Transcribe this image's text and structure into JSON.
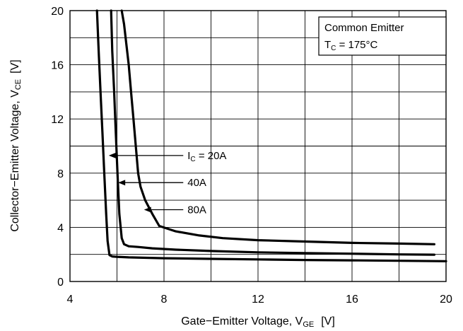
{
  "chart_data": {
    "type": "line",
    "xlabel": {
      "main": "Gate−Emitter Voltage, V",
      "sub": "GE",
      "unit": "[V]"
    },
    "ylabel": {
      "main": "Collector−Emitter Voltage, V",
      "sub": "CE",
      "unit": "[V]"
    },
    "xlim": [
      4,
      20
    ],
    "ylim": [
      0,
      20
    ],
    "x_ticks": [
      4,
      8,
      12,
      16,
      20
    ],
    "y_ticks": [
      0,
      4,
      8,
      12,
      16,
      20
    ],
    "x_grid_step": 2,
    "y_grid_step": 2,
    "grid": true,
    "legend_box": {
      "line1": "Common Emitter",
      "line2_main": "T",
      "line2_sub": "C",
      "line2_rest": " = 175°C",
      "placement": "top-right"
    },
    "series": [
      {
        "name": "20A",
        "label_main": "I",
        "label_sub": "C",
        "label_rest": " = 20A",
        "arrow_at": [
          5.65,
          9.3
        ],
        "label_at": [
          9.0,
          9.3
        ],
        "x": [
          5.15,
          5.22,
          5.3,
          5.38,
          5.46,
          5.54,
          5.6,
          5.68,
          5.8,
          6.0,
          6.5,
          8,
          10,
          12,
          14,
          16,
          18,
          20
        ],
        "y": [
          20,
          17,
          14,
          11,
          8,
          5,
          3,
          1.95,
          1.85,
          1.82,
          1.78,
          1.72,
          1.67,
          1.63,
          1.59,
          1.56,
          1.53,
          1.5
        ]
      },
      {
        "name": "40A",
        "label_main": "",
        "label_sub": "",
        "label_rest": "40A",
        "arrow_at": [
          6.05,
          7.3
        ],
        "label_at": [
          9.0,
          7.3
        ],
        "x": [
          5.75,
          5.8,
          5.88,
          5.95,
          6.02,
          6.1,
          6.2,
          6.3,
          6.5,
          6.9,
          7.5,
          8.5,
          10,
          12,
          14,
          16,
          18,
          19.5
        ],
        "y": [
          20,
          17,
          14,
          11,
          8,
          5,
          3.2,
          2.75,
          2.6,
          2.55,
          2.45,
          2.35,
          2.25,
          2.15,
          2.1,
          2.05,
          2.0,
          1.98
        ]
      },
      {
        "name": "80A",
        "label_main": "",
        "label_sub": "",
        "label_rest": "80A",
        "arrow_at": [
          7.15,
          5.3
        ],
        "label_at": [
          9.0,
          5.3
        ],
        "x": [
          6.2,
          6.3,
          6.4,
          6.5,
          6.6,
          6.7,
          6.8,
          6.9,
          7.0,
          7.2,
          7.5,
          7.8,
          8.5,
          9.5,
          10.5,
          12,
          14,
          16,
          18,
          19.5
        ],
        "y": [
          20,
          19,
          17.5,
          16,
          14,
          12,
          10,
          8,
          7,
          6,
          5,
          4.1,
          3.7,
          3.4,
          3.2,
          3.05,
          2.95,
          2.85,
          2.8,
          2.75
        ]
      }
    ]
  }
}
